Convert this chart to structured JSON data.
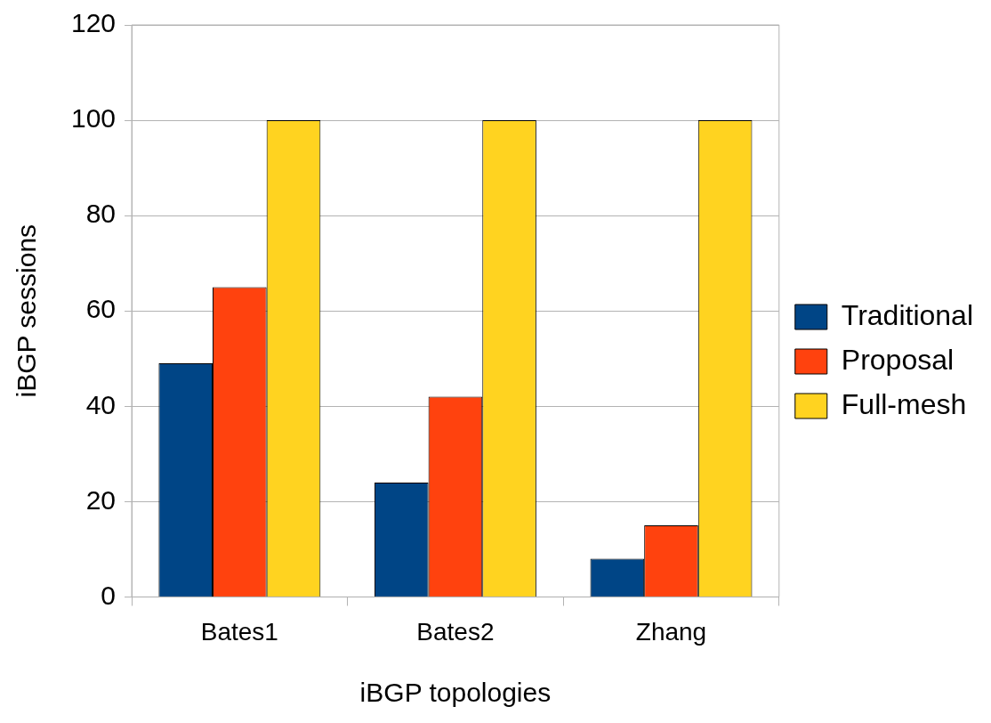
{
  "chart_data": {
    "type": "bar",
    "xlabel": "iBGP topologies",
    "ylabel": "iBGP sessions",
    "categories": [
      "Bates1",
      "Bates2",
      "Zhang"
    ],
    "series": [
      {
        "name": "Traditional",
        "color": "#004586",
        "values": [
          49,
          24,
          8
        ]
      },
      {
        "name": "Proposal",
        "color": "#ff420e",
        "values": [
          65,
          42,
          15
        ]
      },
      {
        "name": "Full-mesh",
        "color": "#ffd320",
        "values": [
          100,
          100,
          100
        ]
      }
    ],
    "ylim": [
      0,
      120
    ],
    "yticks": [
      0,
      20,
      40,
      60,
      80,
      100,
      120
    ],
    "grid": "y",
    "legend": "right"
  }
}
